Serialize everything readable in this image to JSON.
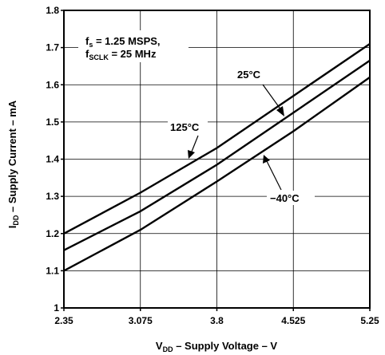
{
  "chart_data": {
    "type": "line",
    "xlabel": {
      "main": "V",
      "sub": "DD",
      "rest": " – Supply Voltage – V"
    },
    "ylabel": {
      "main": "I",
      "sub": "DD",
      "rest": " – Supply Current – mA"
    },
    "xlim": [
      2.35,
      5.25
    ],
    "ylim": [
      1.0,
      1.8
    ],
    "x_ticks": [
      2.35,
      3.075,
      3.8,
      4.525,
      5.25
    ],
    "x_tick_labels": [
      "2.35",
      "3.075",
      "3.8",
      "4.525",
      "5.25"
    ],
    "y_ticks": [
      1.0,
      1.1,
      1.2,
      1.3,
      1.4,
      1.5,
      1.6,
      1.7,
      1.8
    ],
    "y_tick_labels": [
      "1",
      "1.1",
      "1.2",
      "1.3",
      "1.4",
      "1.5",
      "1.6",
      "1.7",
      "1.8"
    ],
    "grid": true,
    "series": [
      {
        "name": "125°C",
        "x": [
          2.35,
          3.075,
          3.8,
          4.525,
          5.25
        ],
        "y": [
          1.2,
          1.31,
          1.43,
          1.57,
          1.71
        ]
      },
      {
        "name": "25°C",
        "x": [
          2.35,
          3.075,
          3.8,
          4.525,
          5.25
        ],
        "y": [
          1.155,
          1.26,
          1.385,
          1.525,
          1.665
        ]
      },
      {
        "name": "−40°C",
        "x": [
          2.35,
          3.075,
          3.8,
          4.525,
          5.25
        ],
        "y": [
          1.1,
          1.21,
          1.34,
          1.475,
          1.62
        ]
      }
    ],
    "annotations": {
      "conditions": {
        "line1": {
          "main": "f",
          "sub": "s",
          "rest": " = 1.25 MSPS,"
        },
        "line2": {
          "main": "f",
          "sub": "SCLK",
          "rest": " = 25 MHz"
        }
      }
    }
  }
}
